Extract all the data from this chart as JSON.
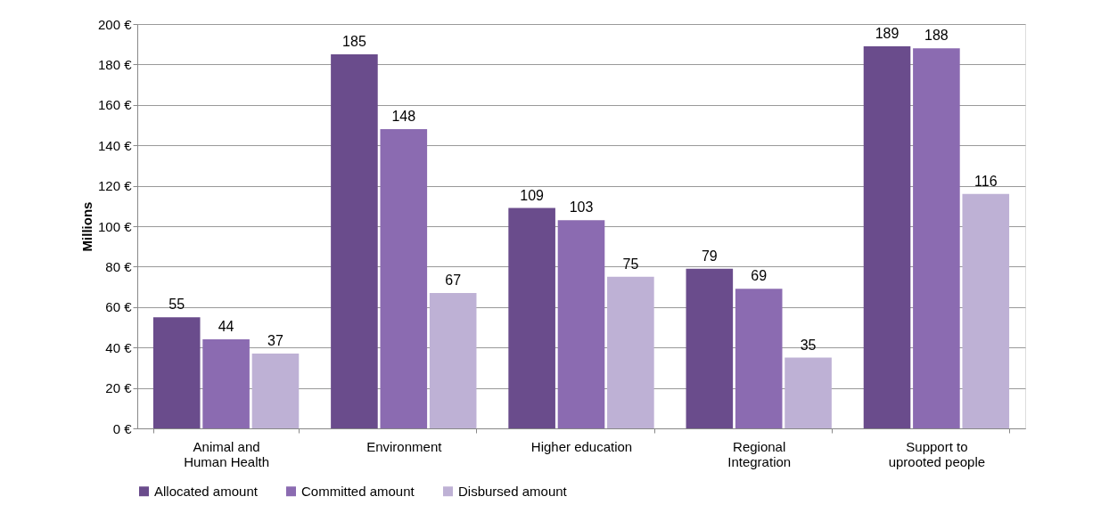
{
  "chart_data": {
    "type": "bar",
    "ylabel": "Millions",
    "categories": [
      "Animal and\nHuman Health",
      "Environment",
      "Higher education",
      "Regional\nIntegration",
      "Support to\nuprooted people"
    ],
    "series": [
      {
        "name": "Allocated amount",
        "color": "#6a4c8c",
        "values": [
          55,
          185,
          109,
          79,
          189
        ]
      },
      {
        "name": "Committed amount",
        "color": "#8b6bb1",
        "values": [
          44,
          148,
          103,
          69,
          188
        ]
      },
      {
        "name": "Disbursed amount",
        "color": "#beb1d5",
        "values": [
          37,
          67,
          75,
          35,
          116
        ]
      }
    ],
    "ylim": [
      0,
      200
    ],
    "yticks": [
      {
        "value": 0,
        "label": "0 €"
      },
      {
        "value": 20,
        "label": "20 €"
      },
      {
        "value": 40,
        "label": "40 €"
      },
      {
        "value": 60,
        "label": "60 €"
      },
      {
        "value": 80,
        "label": "80 €"
      },
      {
        "value": 100,
        "label": "100 €"
      },
      {
        "value": 120,
        "label": "120 €"
      },
      {
        "value": 140,
        "label": "140 €"
      },
      {
        "value": 160,
        "label": "160 €"
      },
      {
        "value": 180,
        "label": "180 €"
      },
      {
        "value": 200,
        "label": "200 €"
      }
    ],
    "grid": "y",
    "legend": "bottom",
    "data_labels": true
  }
}
